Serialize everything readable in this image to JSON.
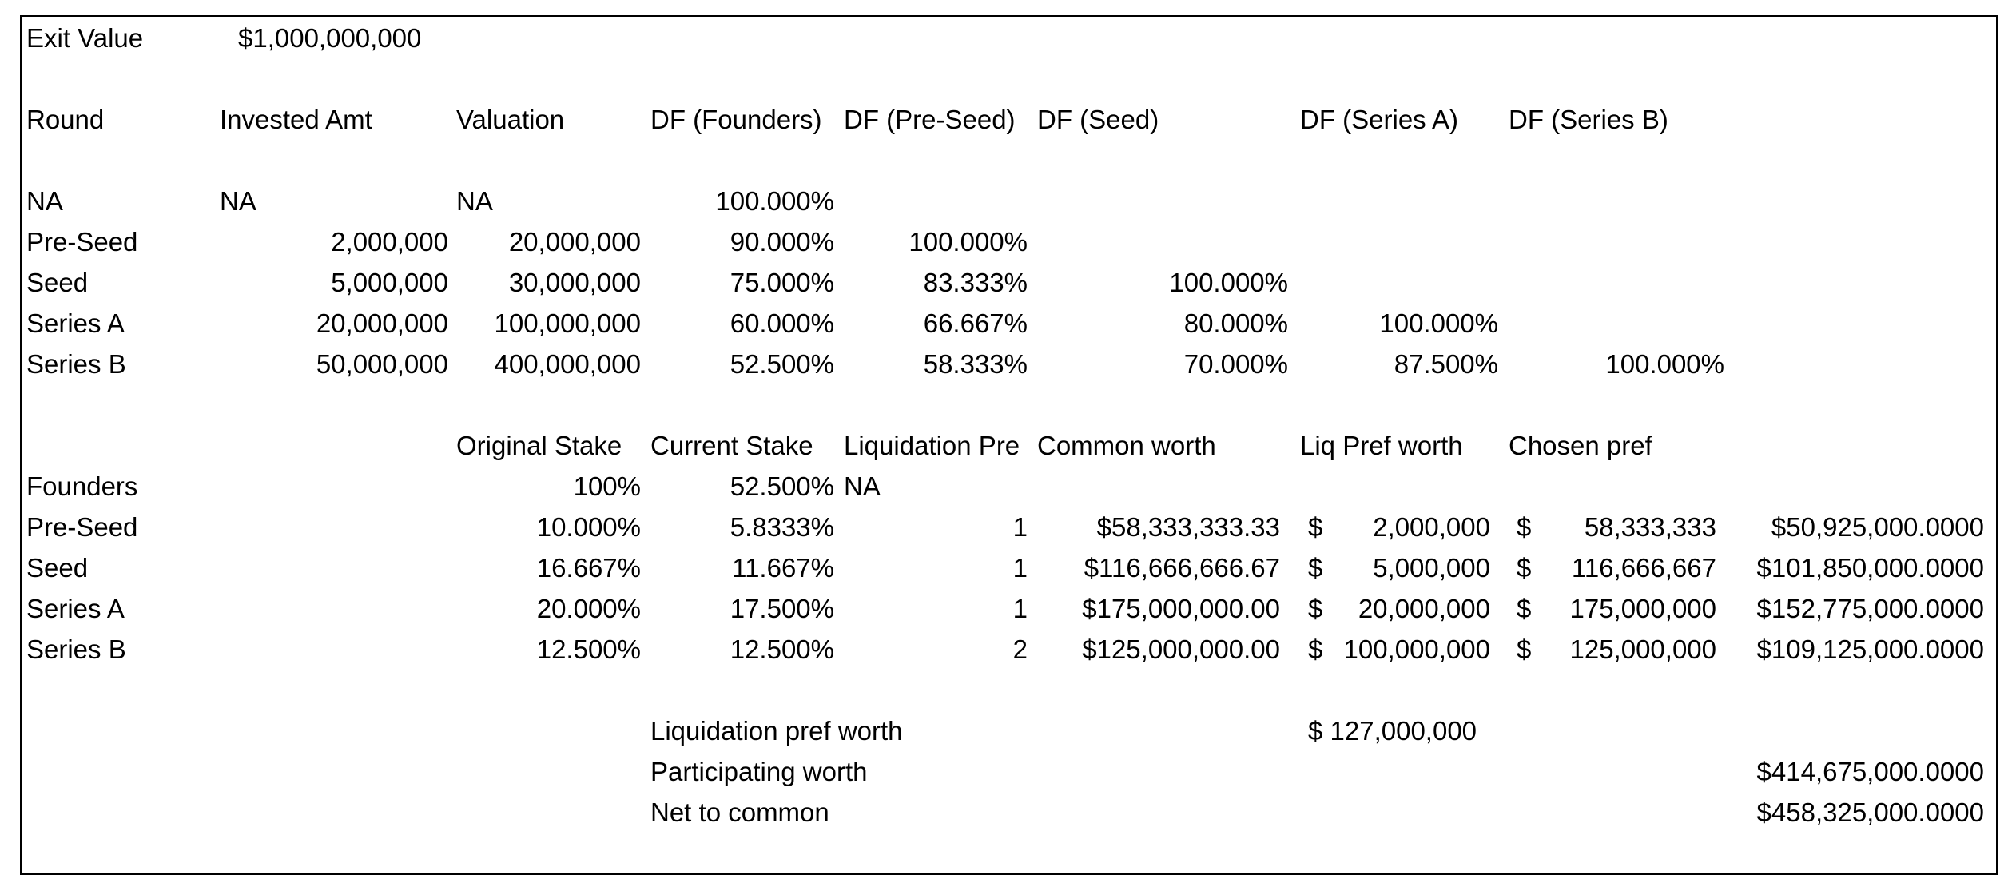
{
  "exit": {
    "label": "Exit Value",
    "value": "$1,000,000,000"
  },
  "headers": [
    "Round",
    "Invested Amt",
    "Valuation",
    "DF (Founders)",
    "DF (Pre-Seed)",
    "DF (Seed)",
    "DF (Series A)",
    "DF (Series B)"
  ],
  "rounds": [
    {
      "round": "NA",
      "invested": "NA",
      "valuation": "NA",
      "df_founders": "100.000%",
      "df_preseed": "",
      "df_seed": "",
      "df_series_a": "",
      "df_series_b": ""
    },
    {
      "round": "Pre-Seed",
      "invested": "2,000,000",
      "valuation": "20,000,000",
      "df_founders": "90.000%",
      "df_preseed": "100.000%",
      "df_seed": "",
      "df_series_a": "",
      "df_series_b": ""
    },
    {
      "round": "Seed",
      "invested": "5,000,000",
      "valuation": "30,000,000",
      "df_founders": "75.000%",
      "df_preseed": "83.333%",
      "df_seed": "100.000%",
      "df_series_a": "",
      "df_series_b": ""
    },
    {
      "round": "Series A",
      "invested": "20,000,000",
      "valuation": "100,000,000",
      "df_founders": "60.000%",
      "df_preseed": "66.667%",
      "df_seed": "80.000%",
      "df_series_a": "100.000%",
      "df_series_b": ""
    },
    {
      "round": "Series B",
      "invested": "50,000,000",
      "valuation": "400,000,000",
      "df_founders": "52.500%",
      "df_preseed": "58.333%",
      "df_seed": "70.000%",
      "df_series_a": "87.500%",
      "df_series_b": "100.000%"
    }
  ],
  "stake_headers": [
    "Original Stake",
    "Current Stake",
    "Liquidation Pre",
    "Common worth",
    "Liq Pref worth",
    "Chosen pref"
  ],
  "stakes": [
    {
      "holder": "Founders",
      "original": "100%",
      "current": "52.500%",
      "liq_pref": "NA",
      "common": "",
      "liq_cur": "",
      "liq_worth": "",
      "chosen_cur": "",
      "chosen": "",
      "final": ""
    },
    {
      "holder": "Pre-Seed",
      "original": "10.000%",
      "current": "5.8333%",
      "liq_pref": "1",
      "common": "$58,333,333.33",
      "liq_cur": "$",
      "liq_worth": "2,000,000",
      "chosen_cur": "$",
      "chosen": "58,333,333",
      "final": "$50,925,000.0000"
    },
    {
      "holder": "Seed",
      "original": "16.667%",
      "current": "11.667%",
      "liq_pref": "1",
      "common": "$116,666,666.67",
      "liq_cur": "$",
      "liq_worth": "5,000,000",
      "chosen_cur": "$",
      "chosen": "116,666,667",
      "final": "$101,850,000.0000"
    },
    {
      "holder": "Series A",
      "original": "20.000%",
      "current": "17.500%",
      "liq_pref": "1",
      "common": "$175,000,000.00",
      "liq_cur": "$",
      "liq_worth": "20,000,000",
      "chosen_cur": "$",
      "chosen": "175,000,000",
      "final": "$152,775,000.0000"
    },
    {
      "holder": "Series B",
      "original": "12.500%",
      "current": "12.500%",
      "liq_pref": "2",
      "common": "$125,000,000.00",
      "liq_cur": "$",
      "liq_worth": "100,000,000",
      "chosen_cur": "$",
      "chosen": "125,000,000",
      "final": "$109,125,000.0000"
    }
  ],
  "totals": {
    "liq_label": "Liquidation pref worth",
    "liq_value": "$ 127,000,000",
    "participating_label": "Participating worth",
    "participating_value": "$414,675,000.0000",
    "net_label": "Net to common",
    "net_value": "$458,325,000.0000"
  }
}
